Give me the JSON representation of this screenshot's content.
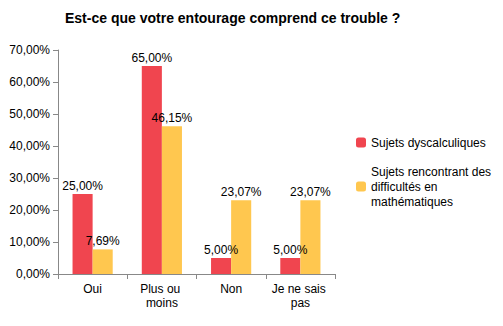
{
  "chart_data": {
    "type": "bar",
    "title": "Est-ce que votre entourage comprend ce trouble ?",
    "categories": [
      "Oui",
      "Plus ou moins",
      "Non",
      "Je ne sais pas"
    ],
    "series": [
      {
        "name": "Sujets dyscalculiques",
        "color": "#f0454f",
        "values": [
          25,
          65,
          5,
          5
        ],
        "value_labels": [
          "25,00%",
          "65,00%",
          "5,00%",
          "5,00%"
        ]
      },
      {
        "name": "Sujets rencontrant des difficultés en mathématiques",
        "color": "#ffc74f",
        "values": [
          7.69,
          46.15,
          23.07,
          23.07
        ],
        "value_labels": [
          "7,69%",
          "46,15%",
          "23,07%",
          "23,07%"
        ]
      }
    ],
    "ylim": [
      0,
      70
    ],
    "yticks": [
      {
        "value": 0,
        "label": "0,00%"
      },
      {
        "value": 10,
        "label": "10,00%"
      },
      {
        "value": 20,
        "label": "20,00%"
      },
      {
        "value": 30,
        "label": "30,00%"
      },
      {
        "value": 40,
        "label": "40,00%"
      },
      {
        "value": 50,
        "label": "50,00%"
      },
      {
        "value": 60,
        "label": "60,00%"
      },
      {
        "value": 70,
        "label": "70,00%"
      }
    ],
    "grid": false,
    "legend": "right",
    "data_labels": true
  }
}
